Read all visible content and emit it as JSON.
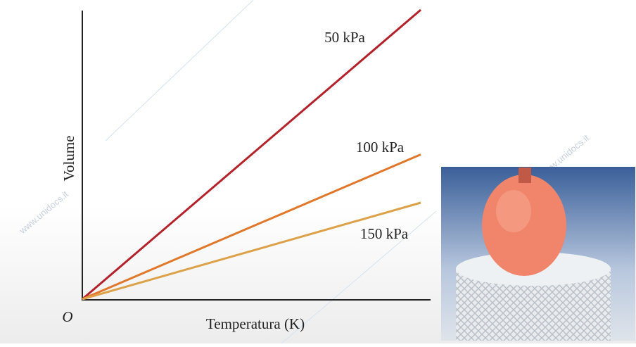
{
  "chart_data": {
    "type": "line",
    "x_label": "Temperatura (K)",
    "y_label": "Volume",
    "origin_label": "O",
    "x": [
      0,
      1
    ],
    "xlim": [
      0,
      1
    ],
    "ylim": [
      0,
      3
    ],
    "series": [
      {
        "name": "50 kPa",
        "color": "#b3222b",
        "values": [
          0,
          3
        ]
      },
      {
        "name": "100 kPa",
        "color": "#e0782c",
        "values": [
          0,
          1.5
        ]
      },
      {
        "name": "150 kPa",
        "color": "#dca24a",
        "values": [
          0,
          1
        ]
      }
    ]
  },
  "watermark": "www.unidocs.it"
}
